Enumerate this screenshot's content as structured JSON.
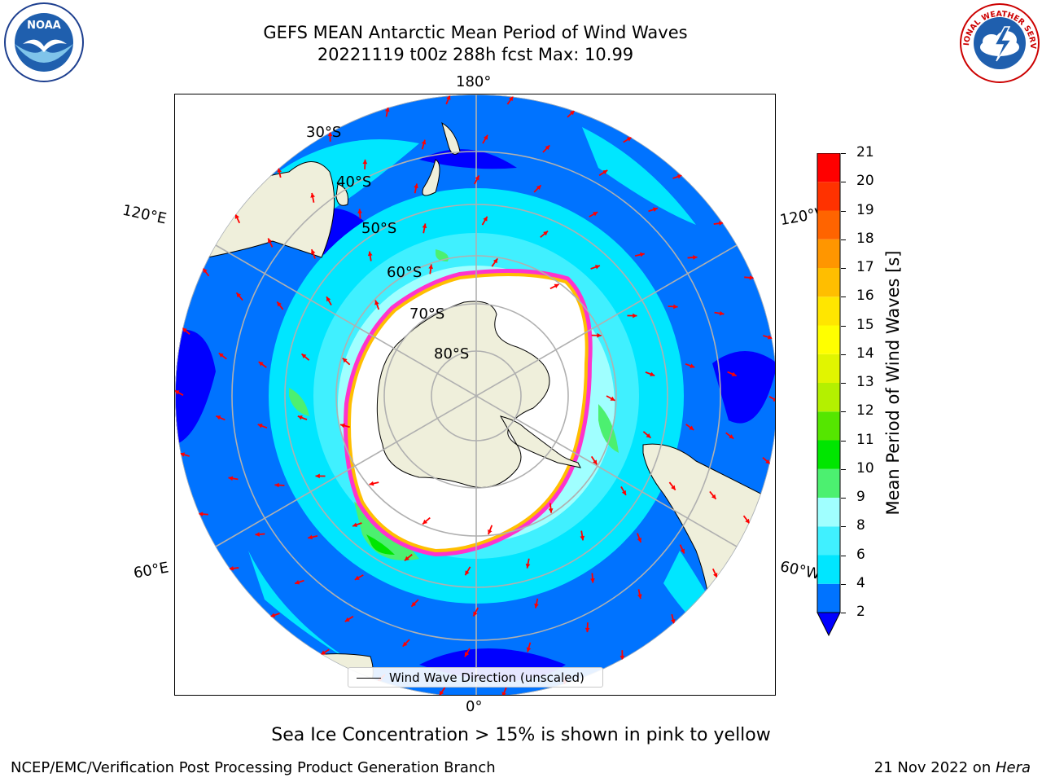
{
  "header": {
    "title_line1": "GEFS MEAN Antarctic Mean Period of Wind Waves",
    "title_line2": "20221119 t00z 288h fcst   Max: 10.99",
    "noaa_logo_text": "NOAA",
    "nws_logo_text": "NATIONAL WEATHER SERVICE"
  },
  "map": {
    "lon_labels": {
      "top": "180°",
      "bottom": "0°",
      "upper_left": "120°E",
      "upper_right": "120°W",
      "lower_left": "60°E",
      "lower_right": "60°W"
    },
    "lat_labels": [
      "30°S",
      "40°S",
      "50°S",
      "60°S",
      "70°S",
      "80°S"
    ],
    "legend": "Wind Wave Direction (unscaled)"
  },
  "colorbar": {
    "label": "Mean Period of Wind Waves [s]",
    "ticks": [
      "2",
      "4",
      "6",
      "8",
      "9",
      "10",
      "11",
      "12",
      "13",
      "14",
      "15",
      "16",
      "17",
      "18",
      "19",
      "20",
      "21"
    ],
    "colors": [
      "#0000ff",
      "#0073ff",
      "#00e6ff",
      "#40f0ff",
      "#a0ffff",
      "#4cf070",
      "#00e600",
      "#55e600",
      "#b4f000",
      "#e1f500",
      "#ffff00",
      "#ffe600",
      "#ffbe00",
      "#ff9600",
      "#ff6400",
      "#ff3200",
      "#ff0000"
    ],
    "extend_color": "#0000ff"
  },
  "caption": "Sea Ice Concentration > 15% is shown in pink to yellow",
  "footer": {
    "left": "NCEP/EMC/Verification Post Processing Product Generation Branch",
    "right_date": "21 Nov 2022 on ",
    "right_machine": "Hera"
  },
  "chart_data": {
    "type": "heatmap",
    "title": "GEFS MEAN Antarctic Mean Period of Wind Waves",
    "subtitle": "20221119 t00z 288h fcst   Max: 10.99",
    "projection": "south-polar-stereographic",
    "colorbar_label": "Mean Period of Wind Waves [s]",
    "colorbar_range": [
      2,
      21
    ],
    "max_value": 10.99,
    "overlay": "Sea Ice Concentration > 15%",
    "legend": "Wind Wave Direction (unscaled)"
  }
}
